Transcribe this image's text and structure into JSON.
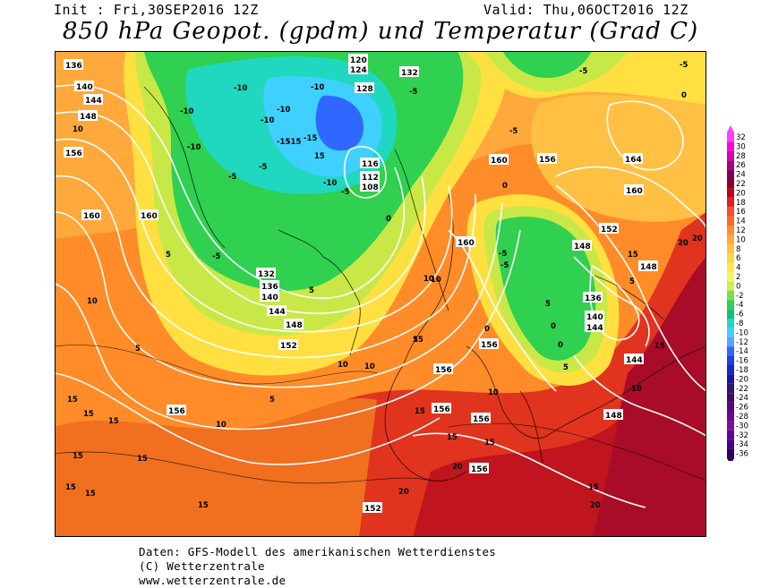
{
  "header": {
    "init": "Init : Fri,30SEP2016 12Z",
    "valid": "Valid: Thu,06OCT2016 12Z",
    "title": "850 hPa Geopot. (gpdm) und Temperatur (Grad C)"
  },
  "footer": {
    "line1": "Daten: GFS-Modell des amerikanischen Wetterdienstes",
    "line2": "(C) Wetterzentrale",
    "line3": "www.wetterzentrale.de"
  },
  "legend": {
    "values": [
      "32",
      "30",
      "28",
      "26",
      "24",
      "22",
      "20",
      "18",
      "16",
      "14",
      "12",
      "10",
      "8",
      "6",
      "4",
      "2",
      "0",
      "-2",
      "-4",
      "-6",
      "-8",
      "-10",
      "-12",
      "-14",
      "-16",
      "-18",
      "-20",
      "-22",
      "-24",
      "-26",
      "-28",
      "-30",
      "-32",
      "-34",
      "-36"
    ],
    "colors": [
      "#ff40ff",
      "#ff00e0",
      "#d800b0",
      "#a80080",
      "#800058",
      "#900020",
      "#c00020",
      "#e41c1c",
      "#ff4a28",
      "#ff6a28",
      "#ff8c32",
      "#ffa83c",
      "#ffc044",
      "#ffd448",
      "#ffe848",
      "#fff060",
      "#c8f050",
      "#78e048",
      "#30d050",
      "#10c080",
      "#20d8c0",
      "#40d0ff",
      "#60a0ff",
      "#3068ff",
      "#2040e0",
      "#1828c0",
      "#1818a0",
      "#2c1478",
      "#400c60",
      "#58087a",
      "#6c0890",
      "#7810a0",
      "#6000a0",
      "#480088",
      "#300060"
    ]
  },
  "map": {
    "geopotential_labels": [
      "136",
      "140",
      "144",
      "148",
      "156",
      "160",
      "132",
      "120",
      "124",
      "128",
      "116",
      "112",
      "108",
      "132",
      "136",
      "140",
      "144",
      "148",
      "152",
      "156",
      "160",
      "164",
      "156",
      "160",
      "148",
      "152",
      "136",
      "140",
      "144",
      "148",
      "156",
      "156",
      "156",
      "156",
      "152",
      "136",
      "140",
      "144",
      "148",
      "160"
    ],
    "temperature_labels": [
      "-10",
      "-10",
      "-10",
      "-10",
      "-10",
      "-15",
      "-15",
      "-10",
      "-5",
      "-5",
      "-5",
      "-5",
      "-5",
      "-5",
      "-5",
      "0",
      "0",
      "0",
      "0",
      "5",
      "5",
      "5",
      "5",
      "5",
      "10",
      "10",
      "10",
      "10",
      "10",
      "10",
      "15",
      "15",
      "15",
      "15",
      "15",
      "15",
      "15",
      "15",
      "15",
      "15",
      "15",
      "15",
      "20",
      "20",
      "20",
      "20",
      "20",
      "-5",
      "0",
      "5",
      "10",
      "15",
      "15",
      "15",
      "10",
      "10",
      "15",
      "-5",
      "5",
      "0",
      "-10",
      "-15",
      "5"
    ],
    "colors": {
      "sea": "#ff8c1e",
      "cold": "#30d050",
      "warm": "#ffe040",
      "hot": "#c8141e"
    }
  }
}
